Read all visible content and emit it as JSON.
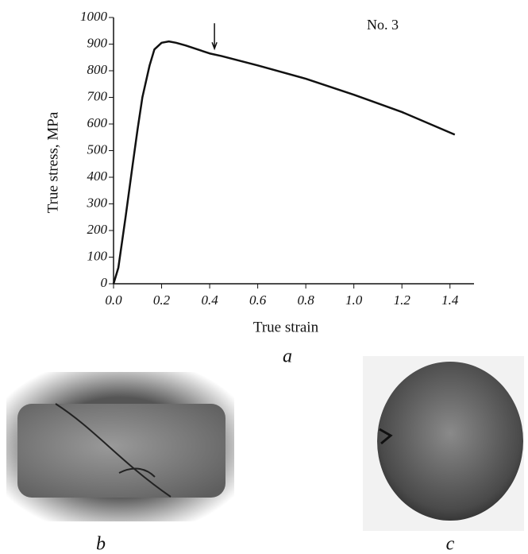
{
  "chart_data": {
    "type": "line",
    "x_label": "True strain",
    "y_label": "True stress, MPa",
    "annotation": "No. 3",
    "arrow": {
      "x": 0.42,
      "y": 865
    },
    "x": [
      0,
      0.02,
      0.05,
      0.08,
      0.1,
      0.12,
      0.15,
      0.17,
      0.2,
      0.23,
      0.26,
      0.3,
      0.35,
      0.4,
      0.45,
      0.6,
      0.8,
      1.0,
      1.2,
      1.42
    ],
    "values": [
      0,
      60,
      250,
      450,
      580,
      700,
      820,
      880,
      905,
      910,
      905,
      895,
      880,
      865,
      855,
      820,
      770,
      710,
      645,
      560
    ],
    "color": "#111111",
    "xlim": [
      0,
      1.5
    ],
    "ylim": [
      0,
      1000
    ],
    "xticks": [
      {
        "value": 0,
        "label": "0.0"
      },
      0.2,
      0.4,
      0.6,
      0.8,
      {
        "value": 1,
        "label": "1.0"
      },
      1.2,
      1.4
    ],
    "yticks": [
      0,
      100,
      200,
      300,
      400,
      500,
      600,
      700,
      800,
      900,
      1000
    ]
  },
  "panel_labels": [
    "a",
    "b",
    "c"
  ]
}
